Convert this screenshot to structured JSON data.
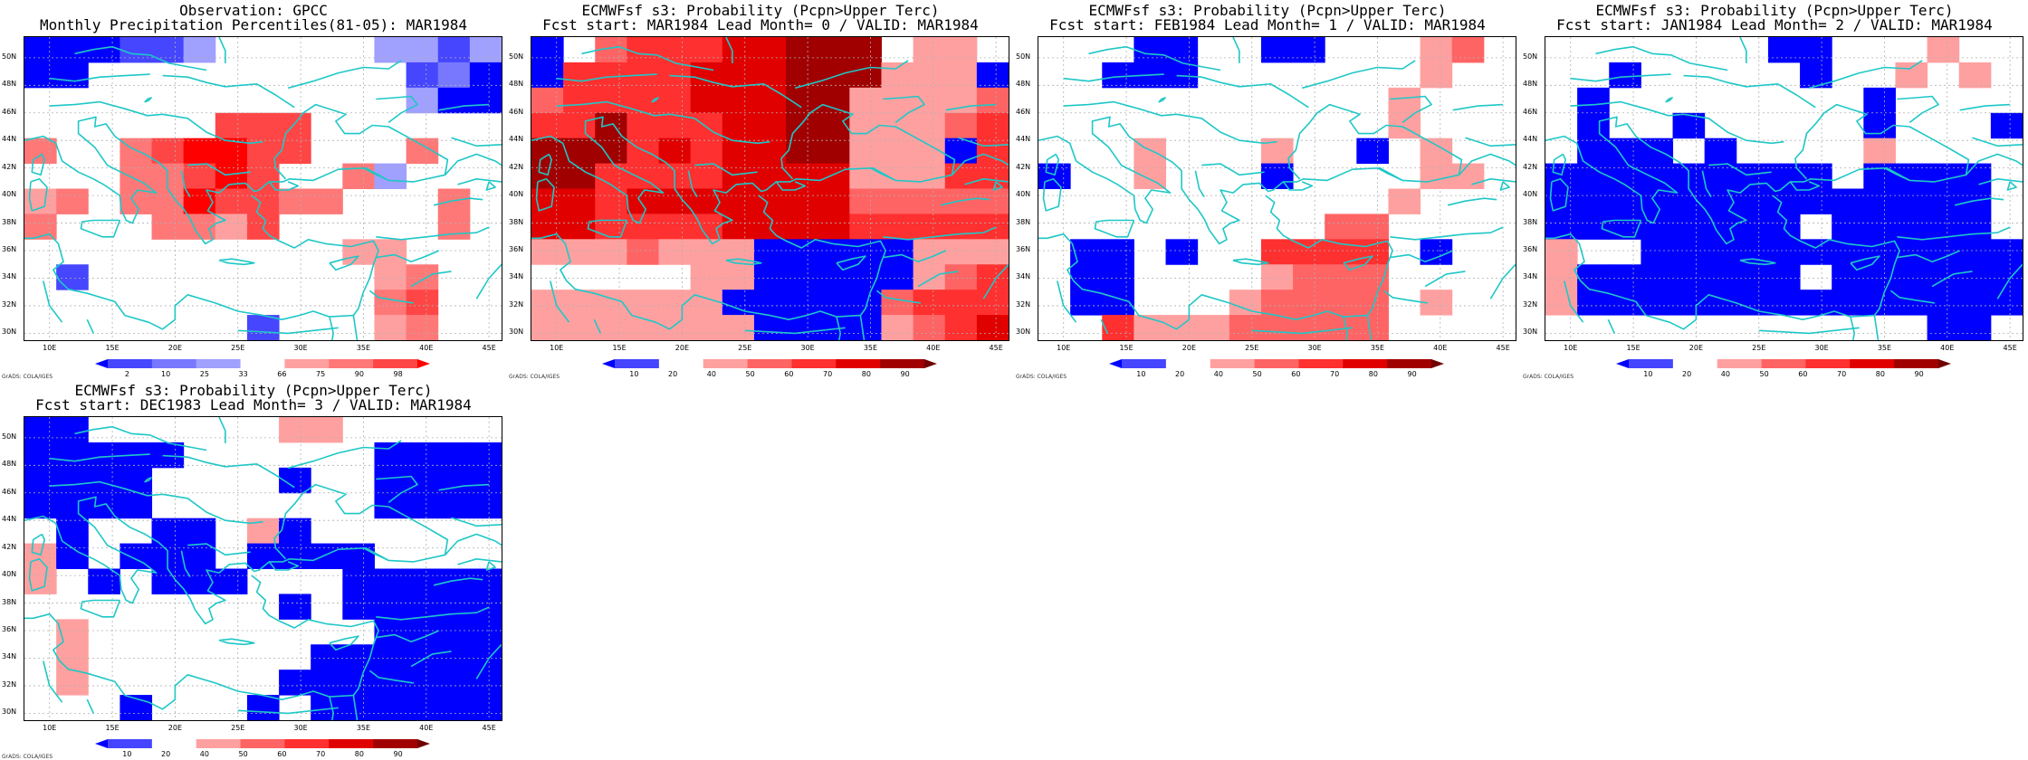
{
  "credit": "GrADS: COLA/IGES",
  "lat_labels": [
    "50N",
    "48N",
    "46N",
    "44N",
    "42N",
    "40N",
    "38N",
    "36N",
    "34N",
    "32N",
    "30N"
  ],
  "lon_labels": [
    "10E",
    "15E",
    "20E",
    "25E",
    "30E",
    "35E",
    "40E",
    "45E"
  ],
  "colors": {
    "coast": "#1fc7c7",
    "grid": "#b0b0b0",
    "obs_scale": [
      "#0000ff",
      "#4646ff",
      "#7878ff",
      "#a0a0ff",
      "#ffffff",
      "#ffa0a0",
      "#ff7878",
      "#ff4646",
      "#ff0000"
    ],
    "prob_scale": [
      "#0000ff",
      "#4545ff",
      "#ffffff",
      "#ffa0a0",
      "#ff6464",
      "#ff3030",
      "#e00000",
      "#a00000"
    ]
  },
  "panels": [
    {
      "title_line1": "Observation: GPCC",
      "title_line2": "Monthly Precipitation Percentiles(81-05): MAR1984",
      "scale": "obs",
      "colorbar_labels": [
        "2",
        "10",
        "25",
        "33",
        "66",
        "75",
        "90",
        "98"
      ],
      "grid": [
        "000113444443313",
        "004444444444120",
        "444444444444300",
        "444444777444444",
        "644678877444644",
        "444667874463444",
        "564668776644464",
        "644466574444464",
        "444444444455444",
        "414444444445644",
        "444444444446744",
        "444444414445644"
      ]
    },
    {
      "title_line1": "ECMWFsf s3: Probability (Pcpn>Upper Terc)",
      "title_line2": "Fcst start: MAR1984  Lead Month= 0 / VALID: MAR1984",
      "scale": "prob",
      "colorbar_labels": [
        "10",
        "20",
        "40",
        "50",
        "60",
        "70",
        "80",
        "90"
      ],
      "grid": [
        "024555667772332",
        "055556667773330",
        "455556667733334",
        "557555667733345",
        "777565667733305",
        "775555666633355",
        "665666666644444",
        "665555666655555",
        "333433300000333",
        "222223300000345",
        "333333000004555",
        "333333300003456"
      ]
    },
    {
      "title_line1": "ECMWFsf s3: Probability (Pcpn>Upper Terc)",
      "title_line2": "Fcst start: FEB1984  Lead Month= 1 / VALID: MAR1984",
      "scale": "prob",
      "colorbar_labels": [
        "10",
        "20",
        "40",
        "50",
        "60",
        "70",
        "80",
        "90"
      ],
      "grid": [
        "222002200222342",
        "220002222222322",
        "222222222223222",
        "222222222223222",
        "222322232202322",
        "022322202222332",
        "222222222223222",
        "222222222442222",
        "200202255552022",
        "200222234442222",
        "200222344442322",
        "225333444442222"
      ]
    },
    {
      "title_line1": "ECMWFsf s3: Probability (Pcpn>Upper Terc)",
      "title_line2": "Fcst start: JAN1984  Lead Month= 2 / VALID: MAR1984",
      "scale": "prob",
      "colorbar_labels": [
        "10",
        "20",
        "40",
        "50",
        "60",
        "70",
        "80",
        "90"
      ],
      "grid": [
        "222222200222322",
        "220222220223232",
        "202222222202222",
        "202202222202220",
        "200020222232222",
        "000000000200002",
        "000000000000002",
        "000000002000002",
        "322000000000000",
        "300000002000000",
        "300000000000000",
        "222222222222002"
      ]
    },
    {
      "title_line1": "ECMWFsf s3: Probability (Pcpn>Upper Terc)",
      "title_line2": "Fcst start: DEC1983  Lead Month= 3 / VALID: MAR1984",
      "scale": "prob",
      "colorbar_labels": [
        "10",
        "20",
        "40",
        "50",
        "60",
        "70",
        "80",
        "90"
      ],
      "grid": [
        "002222223322222",
        "000002222220000",
        "000022220220000",
        "000022222220000",
        "202200230222222",
        "302000200002222",
        "320200022200000",
        "222222220200000",
        "232222222220000",
        "232222222000000",
        "232222220000000",
        "222022202000000"
      ]
    }
  ]
}
